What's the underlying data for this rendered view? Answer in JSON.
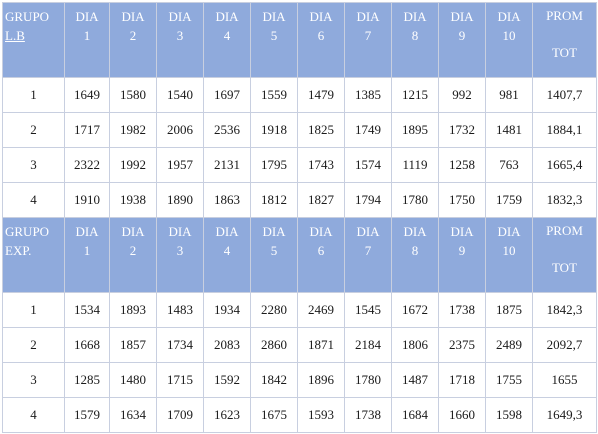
{
  "table1": {
    "group_header": [
      "GRUPO",
      "L.B"
    ],
    "day_headers": [
      [
        "DIA",
        "1"
      ],
      [
        "DIA",
        "2"
      ],
      [
        "DIA",
        "3"
      ],
      [
        "DIA",
        "4"
      ],
      [
        "DIA",
        "5"
      ],
      [
        "DIA",
        "6"
      ],
      [
        "DIA",
        "7"
      ],
      [
        "DIA",
        "8"
      ],
      [
        "DIA",
        "9"
      ],
      [
        "DIA",
        "10"
      ]
    ],
    "prom_header": [
      "PROM",
      "TOT"
    ],
    "rows": [
      {
        "group": "1",
        "values": [
          "1649",
          "1580",
          "1540",
          "1697",
          "1559",
          "1479",
          "1385",
          "1215",
          "992",
          "981"
        ],
        "prom": "1407,7"
      },
      {
        "group": "2",
        "values": [
          "1717",
          "1982",
          "2006",
          "2536",
          "1918",
          "1825",
          "1749",
          "1895",
          "1732",
          "1481"
        ],
        "prom": "1884,1"
      },
      {
        "group": "3",
        "values": [
          "2322",
          "1992",
          "1957",
          "2131",
          "1795",
          "1743",
          "1574",
          "1119",
          "1258",
          "763"
        ],
        "prom": "1665,4"
      },
      {
        "group": "4",
        "values": [
          "1910",
          "1938",
          "1890",
          "1863",
          "1812",
          "1827",
          "1794",
          "1780",
          "1750",
          "1759"
        ],
        "prom": "1832,3"
      }
    ]
  },
  "table2": {
    "group_header": [
      "GRUPO",
      "EXP."
    ],
    "day_headers": [
      [
        "DIA",
        "1"
      ],
      [
        "DIA",
        "2"
      ],
      [
        "DIA",
        "3"
      ],
      [
        "DIA",
        "4"
      ],
      [
        "DIA",
        "5"
      ],
      [
        "DIA",
        "6"
      ],
      [
        "DIA",
        "7"
      ],
      [
        "DIA",
        "8"
      ],
      [
        "DIA",
        "9"
      ],
      [
        "DIA",
        "10"
      ]
    ],
    "prom_header": [
      "PROM",
      "TOT"
    ],
    "rows": [
      {
        "group": "1",
        "values": [
          "1534",
          "1893",
          "1483",
          "1934",
          "2280",
          "2469",
          "1545",
          "1672",
          "1738",
          "1875"
        ],
        "prom": "1842,3"
      },
      {
        "group": "2",
        "values": [
          "1668",
          "1857",
          "1734",
          "2083",
          "2860",
          "1871",
          "2184",
          "1806",
          "2375",
          "2489"
        ],
        "prom": "2092,7"
      },
      {
        "group": "3",
        "values": [
          "1285",
          "1480",
          "1715",
          "1592",
          "1842",
          "1896",
          "1780",
          "1487",
          "1718",
          "1755"
        ],
        "prom": "1655"
      },
      {
        "group": "4",
        "values": [
          "1579",
          "1634",
          "1709",
          "1623",
          "1675",
          "1593",
          "1738",
          "1684",
          "1660",
          "1598"
        ],
        "prom": "1649,3"
      }
    ]
  }
}
